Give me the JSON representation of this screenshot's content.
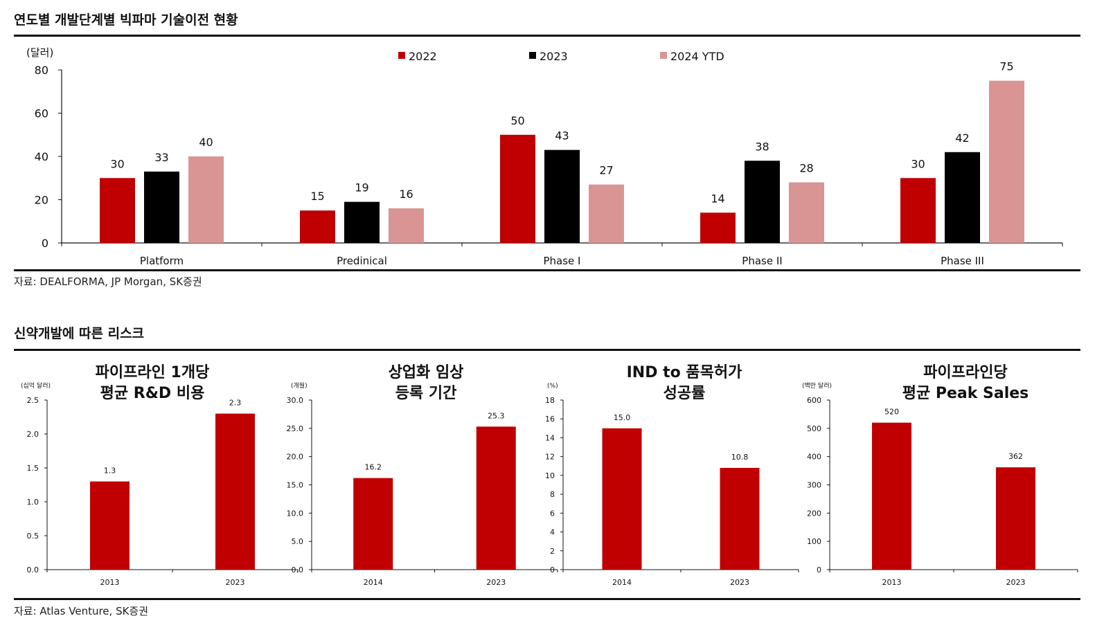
{
  "section1": {
    "title": "연도별  개발단계별 빅파마 기술이전 현황",
    "source": "자료: DEALFORMA, JP Morgan, SK증권"
  },
  "section2": {
    "title": "신약개발에 따른 리스크",
    "source": "자료: Atlas Venture, SK증권"
  },
  "colors": {
    "red": "#c00000",
    "black": "#000000",
    "pink": "#d99494"
  },
  "chart_data": [
    {
      "type": "bar",
      "unit_label": "(달러)",
      "categories": [
        "Platform",
        "Predinical",
        "Phase I",
        "Phase II",
        "Phase III"
      ],
      "series": [
        {
          "name": "2022",
          "values": [
            30,
            15,
            50,
            14,
            30
          ]
        },
        {
          "name": "2023",
          "values": [
            33,
            19,
            43,
            38,
            42
          ]
        },
        {
          "name": "2024 YTD",
          "values": [
            40,
            16,
            27,
            28,
            75
          ]
        }
      ],
      "yticks": [
        "0",
        "20",
        "40",
        "60",
        "80"
      ],
      "ylim": [
        0,
        80
      ],
      "legend": "top-center"
    },
    {
      "type": "bar",
      "title_lines": [
        "파이프라인 1개당",
        "평균 R&D 비용"
      ],
      "unit_label": "(십억 달러)",
      "categories": [
        "2013",
        "2023"
      ],
      "values": [
        1.3,
        2.3
      ],
      "labels": [
        "1.3",
        "2.3"
      ],
      "yticks": [
        "0.0",
        "0.5",
        "1.0",
        "1.5",
        "2.0",
        "2.5"
      ],
      "ylim": [
        0,
        2.5
      ]
    },
    {
      "type": "bar",
      "title_lines": [
        "상업화 임상",
        "등록 기간"
      ],
      "unit_label": "(개월)",
      "categories": [
        "2014",
        "2023"
      ],
      "values": [
        16.2,
        25.3
      ],
      "labels": [
        "16.2",
        "25.3"
      ],
      "yticks": [
        "0.0",
        "5.0",
        "10.0",
        "15.0",
        "20.0",
        "25.0",
        "30.0"
      ],
      "ylim": [
        0,
        30
      ]
    },
    {
      "type": "bar",
      "title_lines": [
        "IND to 품목허가",
        "성공률"
      ],
      "unit_label": "(%)",
      "categories": [
        "2014",
        "2023"
      ],
      "values": [
        15.0,
        10.8
      ],
      "labels": [
        "15.0",
        "10.8"
      ],
      "yticks": [
        "0",
        "2",
        "4",
        "6",
        "8",
        "10",
        "12",
        "14",
        "16",
        "18"
      ],
      "ylim": [
        0,
        18
      ]
    },
    {
      "type": "bar",
      "title_lines": [
        "파이프라인당",
        "평균 Peak Sales"
      ],
      "unit_label": "(백만 달러)",
      "categories": [
        "2013",
        "2023"
      ],
      "values": [
        520,
        362
      ],
      "labels": [
        "520",
        "362"
      ],
      "yticks": [
        "0",
        "100",
        "200",
        "300",
        "400",
        "500",
        "600"
      ],
      "ylim": [
        0,
        600
      ]
    }
  ]
}
